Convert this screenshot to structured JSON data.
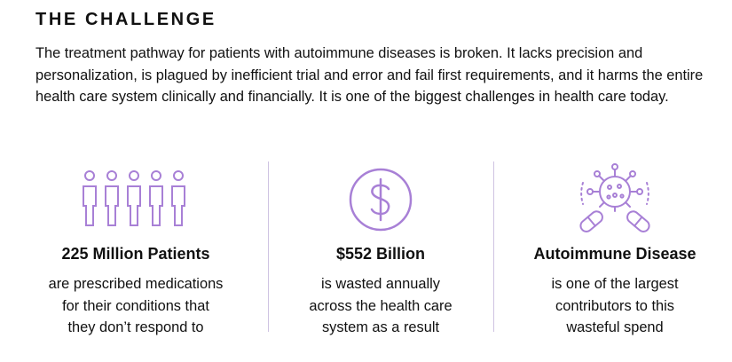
{
  "heading": "THE CHALLENGE",
  "intro": "The treatment pathway for patients with autoimmune diseases is broken. It lacks precision and personalization, is plagued by inefficient trial and error and fail first requirements, and it harms the entire health care system clinically and financially. It is one of the biggest challenges in health care today.",
  "accent_color": "#a880d6",
  "stats": [
    {
      "icon": "people-group-icon",
      "title": "225 Million Patients",
      "lines": [
        "are prescribed medications",
        "for their conditions that",
        "they don’t respond to"
      ]
    },
    {
      "icon": "dollar-coin-icon",
      "title": "$552 Billion",
      "lines": [
        "is wasted annually",
        "across the health care",
        "system as a result"
      ]
    },
    {
      "icon": "virus-pills-icon",
      "title": "Autoimmune Disease",
      "lines": [
        "is one of the largest",
        "contributors to this",
        "wasteful spend"
      ]
    }
  ]
}
